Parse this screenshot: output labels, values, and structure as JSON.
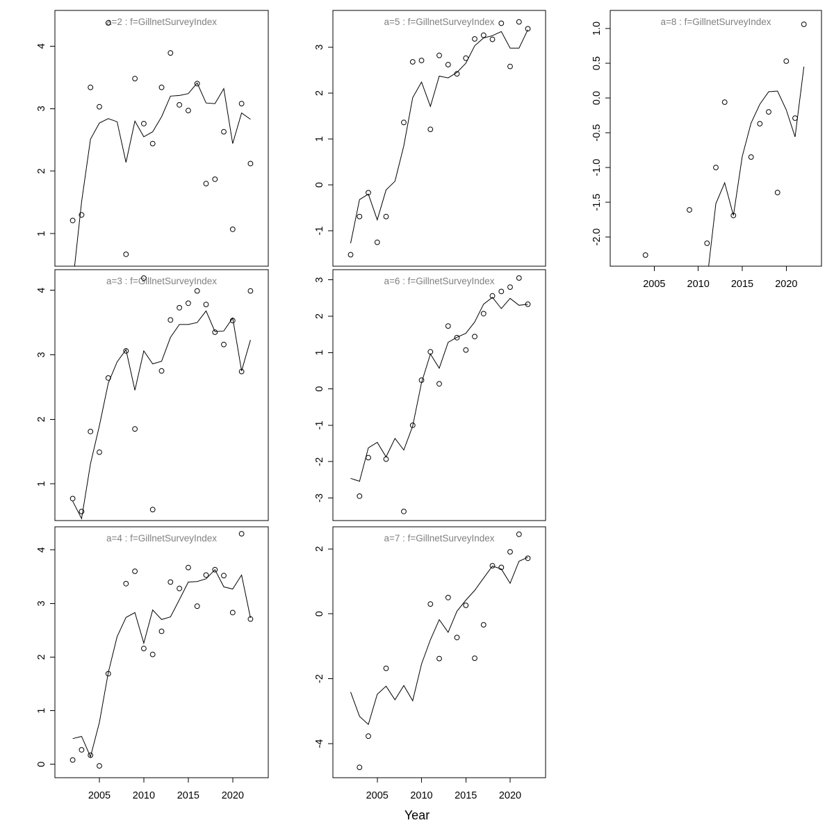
{
  "chart_data": {
    "type": "scatter",
    "layout": "3x3 panel grid (7 panels used), base-R style conditioning plot",
    "xlabel": "Year",
    "xlim": [
      2000,
      2024
    ],
    "x_tick_values": [
      2005,
      2010,
      2015,
      2020
    ],
    "x_tick_labels": [
      "2005",
      "2010",
      "2015",
      "2020"
    ],
    "point_style": "open-circle",
    "line_style": "solid-fitted-line",
    "colors": {
      "axis": "#000000",
      "line": "#000000",
      "point": "#000000",
      "title": "#808080",
      "background": "#ffffff"
    },
    "panels": [
      {
        "id": "a2",
        "title": "a=2  :  f=GillnetSurveyIndex",
        "col": 0,
        "row": 0,
        "ylim": [
          0.48,
          4.57
        ],
        "y_tick_values": [
          1,
          2,
          3,
          4
        ],
        "y_tick_labels": [
          "1",
          "2",
          "3",
          "4"
        ],
        "show_x_axis": false,
        "points": [
          [
            2002,
            1.21
          ],
          [
            2003,
            1.3
          ],
          [
            2004,
            3.34
          ],
          [
            2005,
            3.03
          ],
          [
            2006,
            4.37
          ],
          [
            2008,
            0.67
          ],
          [
            2009,
            3.48
          ],
          [
            2010,
            2.76
          ],
          [
            2011,
            2.44
          ],
          [
            2012,
            3.34
          ],
          [
            2013,
            3.89
          ],
          [
            2014,
            3.06
          ],
          [
            2015,
            2.97
          ],
          [
            2016,
            3.4
          ],
          [
            2017,
            1.8
          ],
          [
            2018,
            1.87
          ],
          [
            2019,
            2.63
          ],
          [
            2020,
            1.07
          ],
          [
            2021,
            3.08
          ],
          [
            2022,
            2.12
          ]
        ],
        "line": [
          [
            2002,
            0.2
          ],
          [
            2003,
            1.51
          ],
          [
            2004,
            2.51
          ],
          [
            2005,
            2.77
          ],
          [
            2006,
            2.84
          ],
          [
            2007,
            2.79
          ],
          [
            2008,
            2.14
          ],
          [
            2009,
            2.8
          ],
          [
            2010,
            2.55
          ],
          [
            2011,
            2.63
          ],
          [
            2012,
            2.87
          ],
          [
            2013,
            3.2
          ],
          [
            2014,
            3.21
          ],
          [
            2015,
            3.24
          ],
          [
            2016,
            3.41
          ],
          [
            2017,
            3.09
          ],
          [
            2018,
            3.08
          ],
          [
            2019,
            3.32
          ],
          [
            2020,
            2.44
          ],
          [
            2021,
            2.93
          ],
          [
            2022,
            2.83
          ]
        ]
      },
      {
        "id": "a3",
        "title": "a=3  :  f=GillnetSurveyIndex",
        "col": 0,
        "row": 1,
        "ylim": [
          0.43,
          4.32
        ],
        "y_tick_values": [
          1,
          2,
          3,
          4
        ],
        "y_tick_labels": [
          "1",
          "2",
          "3",
          "4"
        ],
        "show_x_axis": false,
        "points": [
          [
            2002,
            0.77
          ],
          [
            2003,
            0.57
          ],
          [
            2004,
            1.81
          ],
          [
            2005,
            1.49
          ],
          [
            2006,
            2.64
          ],
          [
            2008,
            3.06
          ],
          [
            2009,
            1.85
          ],
          [
            2010,
            4.19
          ],
          [
            2011,
            0.6
          ],
          [
            2012,
            2.75
          ],
          [
            2013,
            3.54
          ],
          [
            2014,
            3.73
          ],
          [
            2015,
            3.8
          ],
          [
            2016,
            3.99
          ],
          [
            2017,
            3.78
          ],
          [
            2018,
            3.35
          ],
          [
            2019,
            3.16
          ],
          [
            2020,
            3.53
          ],
          [
            2021,
            2.74
          ],
          [
            2022,
            3.99
          ]
        ],
        "line": [
          [
            2002,
            0.73
          ],
          [
            2003,
            0.46
          ],
          [
            2004,
            1.31
          ],
          [
            2005,
            1.9
          ],
          [
            2006,
            2.56
          ],
          [
            2007,
            2.89
          ],
          [
            2008,
            3.08
          ],
          [
            2009,
            2.45
          ],
          [
            2010,
            3.06
          ],
          [
            2011,
            2.86
          ],
          [
            2012,
            2.9
          ],
          [
            2013,
            3.27
          ],
          [
            2014,
            3.47
          ],
          [
            2015,
            3.47
          ],
          [
            2016,
            3.5
          ],
          [
            2017,
            3.68
          ],
          [
            2018,
            3.36
          ],
          [
            2019,
            3.37
          ],
          [
            2020,
            3.57
          ],
          [
            2021,
            2.75
          ],
          [
            2022,
            3.23
          ]
        ]
      },
      {
        "id": "a4",
        "title": "a=4  :  f=GillnetSurveyIndex",
        "col": 0,
        "row": 2,
        "ylim": [
          -0.25,
          4.43
        ],
        "y_tick_values": [
          0,
          1,
          2,
          3,
          4
        ],
        "y_tick_labels": [
          "0",
          "1",
          "2",
          "3",
          "4"
        ],
        "show_x_axis": true,
        "points": [
          [
            2002,
            0.08
          ],
          [
            2003,
            0.27
          ],
          [
            2004,
            0.17
          ],
          [
            2005,
            -0.03
          ],
          [
            2006,
            1.69
          ],
          [
            2008,
            3.37
          ],
          [
            2009,
            3.6
          ],
          [
            2010,
            2.16
          ],
          [
            2011,
            2.05
          ],
          [
            2012,
            2.48
          ],
          [
            2013,
            3.4
          ],
          [
            2014,
            3.28
          ],
          [
            2015,
            3.67
          ],
          [
            2016,
            2.95
          ],
          [
            2017,
            3.53
          ],
          [
            2018,
            3.63
          ],
          [
            2019,
            3.52
          ],
          [
            2020,
            2.83
          ],
          [
            2021,
            4.3
          ],
          [
            2022,
            2.71
          ]
        ],
        "line": [
          [
            2002,
            0.48
          ],
          [
            2003,
            0.52
          ],
          [
            2004,
            0.14
          ],
          [
            2005,
            0.78
          ],
          [
            2006,
            1.71
          ],
          [
            2007,
            2.38
          ],
          [
            2008,
            2.74
          ],
          [
            2009,
            2.83
          ],
          [
            2010,
            2.26
          ],
          [
            2011,
            2.88
          ],
          [
            2012,
            2.7
          ],
          [
            2013,
            2.75
          ],
          [
            2014,
            3.07
          ],
          [
            2015,
            3.4
          ],
          [
            2016,
            3.41
          ],
          [
            2017,
            3.46
          ],
          [
            2018,
            3.63
          ],
          [
            2019,
            3.31
          ],
          [
            2020,
            3.27
          ],
          [
            2021,
            3.53
          ],
          [
            2022,
            2.73
          ]
        ]
      },
      {
        "id": "a5",
        "title": "a=5  :  f=GillnetSurveyIndex",
        "col": 1,
        "row": 0,
        "ylim": [
          -1.77,
          3.8
        ],
        "y_tick_values": [
          -1,
          0,
          1,
          2,
          3
        ],
        "y_tick_labels": [
          "-1",
          "0",
          "1",
          "2",
          "3"
        ],
        "show_x_axis": false,
        "points": [
          [
            2002,
            -1.52
          ],
          [
            2003,
            -0.69
          ],
          [
            2004,
            -0.17
          ],
          [
            2005,
            -1.25
          ],
          [
            2006,
            -0.69
          ],
          [
            2008,
            1.36
          ],
          [
            2009,
            2.68
          ],
          [
            2010,
            2.71
          ],
          [
            2011,
            1.21
          ],
          [
            2012,
            2.82
          ],
          [
            2013,
            2.62
          ],
          [
            2014,
            2.42
          ],
          [
            2015,
            2.76
          ],
          [
            2016,
            3.18
          ],
          [
            2017,
            3.26
          ],
          [
            2018,
            3.17
          ],
          [
            2019,
            3.52
          ],
          [
            2020,
            2.58
          ],
          [
            2021,
            3.55
          ],
          [
            2022,
            3.4
          ]
        ],
        "line": [
          [
            2002,
            -1.27
          ],
          [
            2003,
            -0.32
          ],
          [
            2004,
            -0.2
          ],
          [
            2005,
            -0.76
          ],
          [
            2006,
            -0.11
          ],
          [
            2007,
            0.08
          ],
          [
            2008,
            0.85
          ],
          [
            2009,
            1.9
          ],
          [
            2010,
            2.24
          ],
          [
            2011,
            1.71
          ],
          [
            2012,
            2.37
          ],
          [
            2013,
            2.33
          ],
          [
            2014,
            2.45
          ],
          [
            2015,
            2.65
          ],
          [
            2016,
            3.03
          ],
          [
            2017,
            3.2
          ],
          [
            2018,
            3.25
          ],
          [
            2019,
            3.34
          ],
          [
            2020,
            2.98
          ],
          [
            2021,
            2.98
          ],
          [
            2022,
            3.38
          ]
        ]
      },
      {
        "id": "a6",
        "title": "a=6  :  f=GillnetSurveyIndex",
        "col": 1,
        "row": 1,
        "ylim": [
          -3.62,
          3.28
        ],
        "y_tick_values": [
          -3,
          -2,
          -1,
          0,
          1,
          2,
          3
        ],
        "y_tick_labels": [
          "-3",
          "-2",
          "-1",
          "0",
          "1",
          "2",
          "3"
        ],
        "show_x_axis": false,
        "points": [
          [
            2003,
            -2.95
          ],
          [
            2004,
            -1.89
          ],
          [
            2006,
            -1.93
          ],
          [
            2008,
            -3.37
          ],
          [
            2009,
            -1.0
          ],
          [
            2010,
            0.24
          ],
          [
            2011,
            1.02
          ],
          [
            2012,
            0.14
          ],
          [
            2013,
            1.73
          ],
          [
            2014,
            1.41
          ],
          [
            2015,
            1.07
          ],
          [
            2016,
            1.44
          ],
          [
            2017,
            2.07
          ],
          [
            2018,
            2.56
          ],
          [
            2019,
            2.68
          ],
          [
            2020,
            2.8
          ],
          [
            2021,
            3.05
          ],
          [
            2022,
            2.33
          ]
        ],
        "line": [
          [
            2002,
            -2.46
          ],
          [
            2003,
            -2.54
          ],
          [
            2004,
            -1.62
          ],
          [
            2005,
            -1.47
          ],
          [
            2006,
            -1.87
          ],
          [
            2007,
            -1.36
          ],
          [
            2008,
            -1.68
          ],
          [
            2009,
            -1.02
          ],
          [
            2010,
            0.17
          ],
          [
            2011,
            0.96
          ],
          [
            2012,
            0.57
          ],
          [
            2013,
            1.28
          ],
          [
            2014,
            1.42
          ],
          [
            2015,
            1.53
          ],
          [
            2016,
            1.84
          ],
          [
            2017,
            2.33
          ],
          [
            2018,
            2.52
          ],
          [
            2019,
            2.21
          ],
          [
            2020,
            2.49
          ],
          [
            2021,
            2.3
          ],
          [
            2022,
            2.33
          ]
        ]
      },
      {
        "id": "a7",
        "title": "a=7  :  f=GillnetSurveyIndex",
        "col": 1,
        "row": 2,
        "ylim": [
          -5.05,
          2.68
        ],
        "y_tick_values": [
          -4,
          -2,
          0,
          2
        ],
        "y_tick_labels": [
          "-4",
          "-2",
          "0",
          "2"
        ],
        "show_x_axis": true,
        "points": [
          [
            2003,
            -4.73
          ],
          [
            2004,
            -3.77
          ],
          [
            2006,
            -1.68
          ],
          [
            2011,
            0.3
          ],
          [
            2012,
            -1.38
          ],
          [
            2013,
            0.5
          ],
          [
            2014,
            -0.73
          ],
          [
            2015,
            0.26
          ],
          [
            2016,
            -1.37
          ],
          [
            2017,
            -0.34
          ],
          [
            2018,
            1.48
          ],
          [
            2019,
            1.43
          ],
          [
            2020,
            1.91
          ],
          [
            2021,
            2.45
          ],
          [
            2022,
            1.71
          ]
        ],
        "line": [
          [
            2002,
            -2.41
          ],
          [
            2003,
            -3.16
          ],
          [
            2004,
            -3.41
          ],
          [
            2005,
            -2.48
          ],
          [
            2006,
            -2.23
          ],
          [
            2007,
            -2.65
          ],
          [
            2008,
            -2.21
          ],
          [
            2009,
            -2.68
          ],
          [
            2010,
            -1.55
          ],
          [
            2011,
            -0.8
          ],
          [
            2012,
            -0.18
          ],
          [
            2013,
            -0.57
          ],
          [
            2014,
            0.08
          ],
          [
            2015,
            0.42
          ],
          [
            2016,
            0.72
          ],
          [
            2017,
            1.1
          ],
          [
            2018,
            1.47
          ],
          [
            2019,
            1.38
          ],
          [
            2020,
            0.94
          ],
          [
            2021,
            1.62
          ],
          [
            2022,
            1.74
          ]
        ]
      },
      {
        "id": "a8",
        "title": "a=8  :  f=GillnetSurveyIndex",
        "col": 2,
        "row": 0,
        "ylim": [
          -2.42,
          1.26
        ],
        "y_tick_values": [
          -2.0,
          -1.5,
          -1.0,
          -0.5,
          0.0,
          0.5,
          1.0
        ],
        "y_tick_labels": [
          "-2.0",
          "-1.5",
          "-1.0",
          "-0.5",
          "0.0",
          "0.5",
          "1.0"
        ],
        "show_x_axis": true,
        "points": [
          [
            2004,
            -2.26
          ],
          [
            2009,
            -1.61
          ],
          [
            2011,
            -2.09
          ],
          [
            2012,
            -1.0
          ],
          [
            2013,
            -0.06
          ],
          [
            2014,
            -1.69
          ],
          [
            2016,
            -0.85
          ],
          [
            2017,
            -0.37
          ],
          [
            2018,
            -0.2
          ],
          [
            2019,
            -1.36
          ],
          [
            2020,
            0.53
          ],
          [
            2021,
            -0.29
          ],
          [
            2022,
            1.06
          ]
        ],
        "line": [
          [
            2011,
            -2.62
          ],
          [
            2012,
            -1.52
          ],
          [
            2013,
            -1.22
          ],
          [
            2014,
            -1.69
          ],
          [
            2015,
            -0.84
          ],
          [
            2016,
            -0.36
          ],
          [
            2017,
            -0.09
          ],
          [
            2018,
            0.09
          ],
          [
            2019,
            0.1
          ],
          [
            2020,
            -0.17
          ],
          [
            2021,
            -0.56
          ],
          [
            2022,
            0.45
          ]
        ]
      }
    ]
  }
}
